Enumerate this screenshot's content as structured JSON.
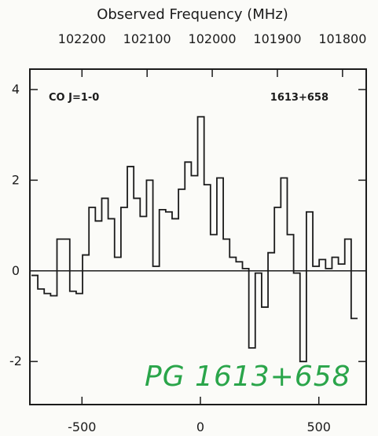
{
  "chart_data": {
    "type": "line",
    "style": "step",
    "title": "Observed Frequency (MHz)",
    "top_tick_labels": [
      "102200",
      "102100",
      "102000",
      "101900",
      "101800"
    ],
    "top_ticks_mhz": [
      102200,
      102100,
      102000,
      101900,
      101800
    ],
    "bottom_tick_labels": [
      "-500",
      "0",
      "500"
    ],
    "bottom_ticks": [
      -500,
      0,
      500
    ],
    "y_tick_labels": [
      "4",
      "2",
      "0",
      "-2"
    ],
    "y_ticks": [
      4,
      2,
      0,
      -2
    ],
    "xlim": [
      -720,
      700
    ],
    "ylim": [
      -2.95,
      4.45
    ],
    "zero_line": true,
    "annotation_left": "CO J=1-0",
    "annotation_right": "1613+658",
    "handwritten_label": "PG 1613+658",
    "handwritten_color": "#2aa54a",
    "line_color": "#1b1b1b",
    "x": [
      -700,
      -673,
      -646,
      -619,
      -592,
      -565,
      -538,
      -511,
      -484,
      -457,
      -430,
      -403,
      -376,
      -349,
      -322,
      -295,
      -268,
      -241,
      -214,
      -187,
      -160,
      -133,
      -106,
      -79,
      -52,
      -25,
      2,
      29,
      56,
      83,
      110,
      137,
      164,
      191,
      218,
      245,
      272,
      299,
      326,
      353,
      380,
      407,
      434,
      461,
      488,
      515,
      542,
      569,
      596,
      623,
      650
    ],
    "values": [
      -0.1,
      -0.4,
      -0.5,
      -0.55,
      0.7,
      0.7,
      -0.45,
      -0.5,
      0.35,
      1.4,
      1.1,
      1.6,
      1.15,
      0.3,
      1.4,
      2.3,
      1.6,
      1.2,
      2.0,
      0.1,
      1.35,
      1.3,
      1.15,
      1.8,
      2.4,
      2.1,
      3.4,
      1.9,
      0.8,
      2.05,
      0.7,
      0.3,
      0.2,
      0.05,
      -1.7,
      -0.05,
      -0.8,
      0.4,
      1.4,
      2.05,
      0.8,
      -0.05,
      -2.0,
      1.3,
      0.1,
      0.25,
      0.05,
      0.3,
      0.15,
      0.7,
      -1.05
    ]
  }
}
